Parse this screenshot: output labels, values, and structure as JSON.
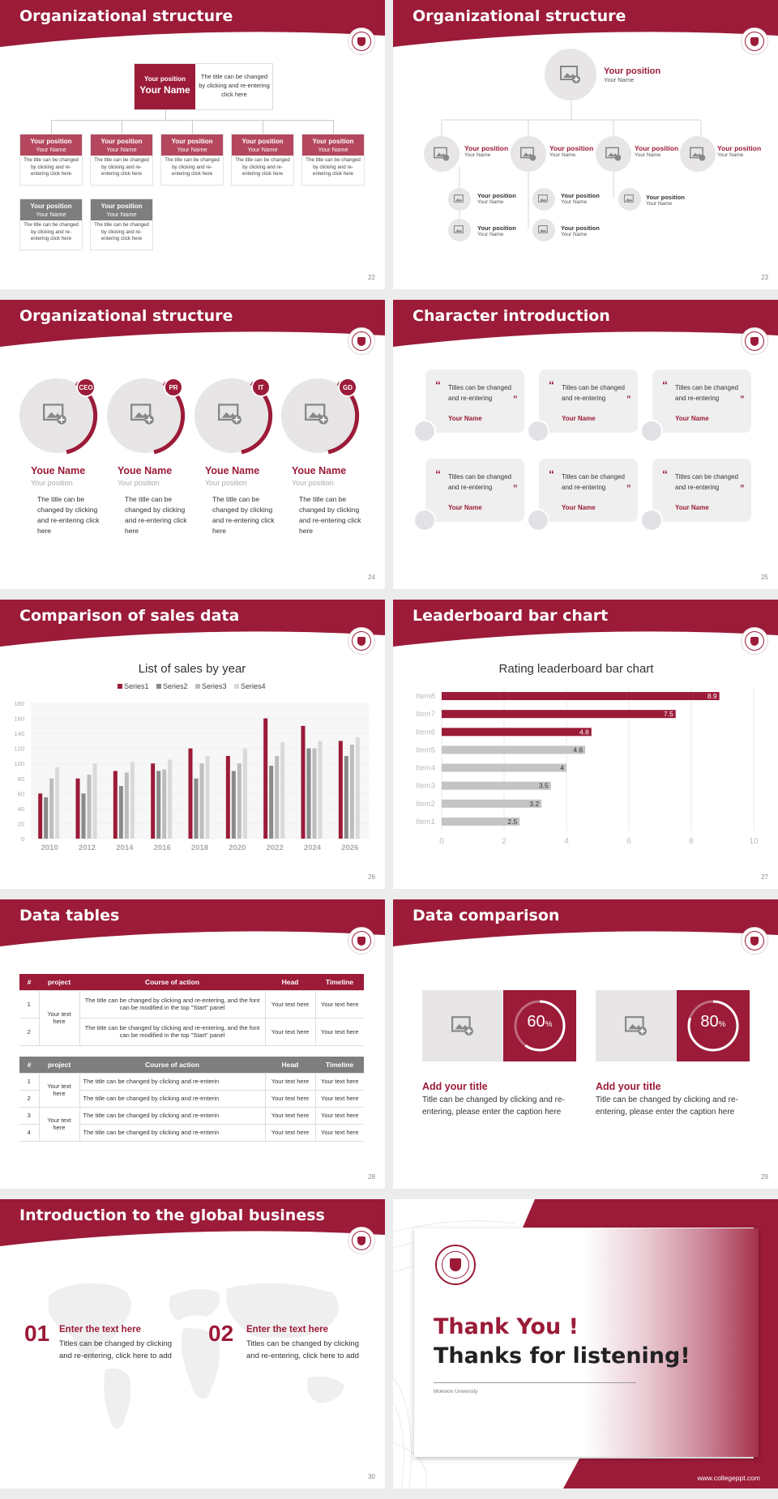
{
  "colors": {
    "accent": "#9b1b38",
    "gray": "#7e7e7e",
    "light": "#e7e5e5"
  },
  "slides": {
    "s1": {
      "title": "Organizational structure",
      "page": "22",
      "top": {
        "position": "Your position",
        "name": "Your Name",
        "text": "The title can be changed by clicking and re-entering click here"
      },
      "boxes": [
        {
          "position": "Your position",
          "name": "Your Name",
          "text": "The title can be changed by clicking and re-entering click here"
        },
        {
          "position": "Your position",
          "name": "Your Name",
          "text": "The title can be changed by clicking and re-entering click here"
        },
        {
          "position": "Your position",
          "name": "Your Name",
          "text": "The title can be changed by clicking and re-entering click here"
        },
        {
          "position": "Your position",
          "name": "Your Name",
          "text": "The title can be changed by clicking and re-entering click here"
        },
        {
          "position": "Your position",
          "name": "Your Name",
          "text": "The title can be changed by clicking and re-entering click here"
        },
        {
          "position": "Your position",
          "name": "Your Name",
          "text": "The title can be changed by clicking and re-entering click here"
        },
        {
          "position": "Your position",
          "name": "Your Name",
          "text": "The title can be changed by clicking and re-entering click here"
        }
      ]
    },
    "s2": {
      "title": "Organizational structure",
      "page": "23",
      "top": {
        "position": "Your position",
        "name": "Your Name"
      },
      "level2": [
        {
          "position": "Your position",
          "name": "Your Name"
        },
        {
          "position": "Your position",
          "name": "Your Name"
        },
        {
          "position": "Your position",
          "name": "Your Name"
        },
        {
          "position": "Your position",
          "name": "Your Name"
        }
      ],
      "level3": [
        {
          "position": "Your position",
          "name": "Your Name"
        },
        {
          "position": "Your position",
          "name": "Your Name"
        },
        {
          "position": "Your position",
          "name": "Your Name"
        },
        {
          "position": "Your position",
          "name": "Your Name"
        },
        {
          "position": "Your position",
          "name": "Your Name"
        }
      ]
    },
    "s3": {
      "title": "Organizational structure",
      "page": "24",
      "people": [
        {
          "badge": "CEO",
          "name": "Youe Name",
          "position": "Your position",
          "text": "The title can be changed by clicking and re-entering click here"
        },
        {
          "badge": "PR",
          "name": "Youe Name",
          "position": "Your position",
          "text": "The title can be changed by clicking and re-entering click here"
        },
        {
          "badge": "IT",
          "name": "Youe Name",
          "position": "Your position",
          "text": "The title can be changed by clicking and re-entering click here"
        },
        {
          "badge": "GD",
          "name": "Youe Name",
          "position": "Your position",
          "text": "The title can be changed by clicking and re-entering click here"
        }
      ]
    },
    "s4": {
      "title": "Character introduction",
      "page": "25",
      "cards": [
        {
          "text": "Titles can be changed and re-entering",
          "name": "Your Name"
        },
        {
          "text": "Titles can be changed and re-entering",
          "name": "Your Name"
        },
        {
          "text": "Titles can be changed and re-entering",
          "name": "Your Name"
        },
        {
          "text": "Titles can be changed and re-entering",
          "name": "Your Name"
        },
        {
          "text": "Titles can be changed and re-entering",
          "name": "Your Name"
        },
        {
          "text": "Titles can be changed and re-entering",
          "name": "Your Name"
        }
      ]
    },
    "s5": {
      "title": "Comparison of sales data",
      "page": "26"
    },
    "s6": {
      "title": "Leaderboard bar chart",
      "page": "27"
    },
    "s7": {
      "title": "Data tables",
      "page": "28",
      "t1": {
        "headers": [
          "#",
          "project",
          "Course of action",
          "Head",
          "Timeline"
        ],
        "rows": [
          {
            "n": "1",
            "action": "The title can be changed by clicking and re-entering, and the font can be modified in the top \"Start\" panel",
            "head": "Your text here",
            "time": "Your text here"
          },
          {
            "n": "2",
            "action": "The title can be changed by clicking and re-entering, and the font can be modified in the top \"Start\" panel",
            "head": "Your text here",
            "time": "Your text here"
          }
        ],
        "project": "Your text here"
      },
      "t2": {
        "headers": [
          "#",
          "project",
          "Course of action",
          "Head",
          "Timeline"
        ],
        "rows": [
          {
            "n": "1",
            "action": "The title can be changed by clicking and re-enterin",
            "head": "Your text here",
            "time": "Your text here"
          },
          {
            "n": "2",
            "action": "The title can be changed by clicking and re-enterin",
            "head": "Your text here",
            "time": "Your text here"
          },
          {
            "n": "3",
            "action": "The title can be changed by clicking and re-enterin",
            "head": "Your text here",
            "time": "Your text here"
          },
          {
            "n": "4",
            "action": "The title can be changed by clicking and re-enterin",
            "head": "Your text here",
            "time": "Your text here"
          }
        ],
        "project_a": "Your text here",
        "project_b": "Your text here"
      }
    },
    "s8": {
      "title": "Data comparison",
      "page": "29",
      "items": [
        {
          "percent": 60,
          "value": "60",
          "unit": "%",
          "heading": "Add your title",
          "text": "Title can be changed by clicking and re-entering, please enter the caption here"
        },
        {
          "percent": 80,
          "value": "80",
          "unit": "%",
          "heading": "Add your title",
          "text": "Title can be changed by clicking and re-entering, please enter the caption here"
        }
      ]
    },
    "s9": {
      "title": "Introduction to the global business",
      "page": "30",
      "items": [
        {
          "num": "01",
          "heading": "Enter the text here",
          "text": "Titles can be changed by clicking and re-entering, click here to add"
        },
        {
          "num": "02",
          "heading": "Enter the text here",
          "text": "Titles can be changed by clicking and re-entering, click here to add"
        }
      ]
    },
    "s10": {
      "line1": "Thank You !",
      "line2": "Thanks for listening!",
      "university": "Mokwon University",
      "website": "www.collegeppt.com"
    }
  },
  "chart_data": [
    {
      "type": "bar",
      "title": "List of sales by year",
      "categories": [
        "2010",
        "2012",
        "2014",
        "2016",
        "2018",
        "2020",
        "2022",
        "2024",
        "2026"
      ],
      "series": [
        {
          "name": "Series1",
          "values": [
            60,
            80,
            90,
            100,
            120,
            110,
            160,
            150,
            130
          ],
          "color": "#9b1b38"
        },
        {
          "name": "Series2",
          "values": [
            55,
            60,
            70,
            90,
            80,
            90,
            97,
            120,
            110
          ],
          "color": "#8a8a8a"
        },
        {
          "name": "Series3",
          "values": [
            80,
            85,
            88,
            92,
            100,
            100,
            110,
            120,
            125
          ],
          "color": "#bdbdbd"
        },
        {
          "name": "Series4",
          "values": [
            95,
            100,
            102,
            105,
            110,
            120,
            128,
            130,
            135
          ],
          "color": "#d9d9d9"
        }
      ],
      "ylim": [
        0,
        180
      ],
      "yticks": [
        "0",
        "20",
        "40",
        "60",
        "80",
        "100",
        "120",
        "140",
        "160",
        "180"
      ],
      "legend": "top"
    },
    {
      "type": "bar",
      "orientation": "horizontal",
      "title": "Rating leaderboard bar chart",
      "categories": [
        "Item8",
        "Item7",
        "Item6",
        "Item5",
        "Item4",
        "Item3",
        "Item2",
        "Item1"
      ],
      "values": [
        8.9,
        7.5,
        4.8,
        4.6,
        4,
        3.5,
        3.2,
        2.5
      ],
      "labels": [
        "8.9",
        "7.5",
        "4.8",
        "4.6",
        "4",
        "3.5",
        "3.2",
        "2.5"
      ],
      "colors": [
        "#9b1b38",
        "#9b1b38",
        "#9b1b38",
        "#c4c4c4",
        "#c4c4c4",
        "#c4c4c4",
        "#c4c4c4",
        "#c4c4c4"
      ],
      "xlim": [
        0,
        10
      ],
      "xticks": [
        "0",
        "2",
        "4",
        "6",
        "8",
        "10"
      ]
    }
  ]
}
